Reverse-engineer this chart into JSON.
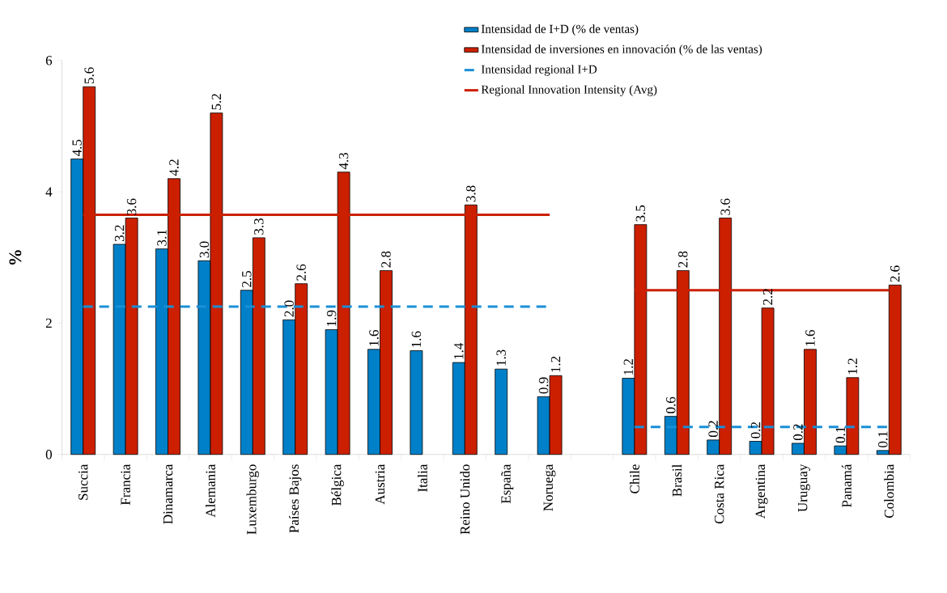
{
  "chart_data": {
    "type": "bar",
    "ylabel": "%",
    "categories": [
      "Succia",
      "Francia",
      "Dinamarca",
      "Alemania",
      "Luxemburgo",
      "Países Bajos",
      "Bélgica",
      "Austria",
      "Italia",
      "Reino Unido",
      "España",
      "Noruega",
      null,
      "Chile",
      "Brasil",
      "Costa Rica",
      "Argentina",
      "Uruguay",
      "Panamá",
      "Colombia"
    ],
    "series": [
      {
        "name": "Intensidad de I+D (% de ventas)",
        "color": "#0080c8",
        "values": [
          4.5,
          3.2,
          3.13,
          2.95,
          2.5,
          2.05,
          1.9,
          1.6,
          1.58,
          1.4,
          1.3,
          0.88,
          null,
          1.16,
          0.58,
          0.22,
          0.2,
          0.17,
          0.13,
          0.06
        ],
        "value_labels": [
          "4.5",
          "3.2",
          "3.1",
          "3.0",
          "2.5",
          "2.0",
          "1.9",
          "1.6",
          "1.6",
          "1.4",
          "1.3",
          "0.9",
          null,
          "1.2",
          "0.6",
          "0.2",
          "0.2",
          "0.2",
          "0.1",
          "0.1"
        ]
      },
      {
        "name": "Intensidad de inversiones en innovación (% de las ventas)",
        "color": "#cc1f00",
        "values": [
          5.6,
          3.6,
          4.2,
          5.2,
          3.3,
          2.6,
          4.3,
          2.8,
          null,
          3.8,
          null,
          1.2,
          null,
          3.5,
          2.8,
          3.6,
          2.23,
          1.6,
          1.17,
          2.58
        ],
        "value_labels": [
          "5.6",
          "3.6",
          "4.2",
          "5.2",
          "3.3",
          "2.6",
          "4.3",
          "2.8",
          null,
          "3.8",
          null,
          "1.2",
          null,
          "3.5",
          "2.8",
          "3.6",
          "2.2",
          "1.6",
          "1.2",
          "2.6"
        ]
      },
      {
        "name": "Intensidad regional I+D",
        "type": "line",
        "line_style": "dashed",
        "color": "#1a8fd6",
        "values": [
          2.25,
          2.25,
          2.25,
          2.25,
          2.25,
          2.25,
          2.25,
          2.25,
          2.25,
          2.25,
          2.25,
          2.25,
          null,
          0.42,
          0.42,
          0.42,
          0.42,
          0.42,
          0.42,
          0.42
        ]
      },
      {
        "name": "Regional Innovation Intensity (Avg)",
        "type": "line",
        "line_style": "solid",
        "color": "#cc1f00",
        "values": [
          3.65,
          3.65,
          3.65,
          3.65,
          3.65,
          3.65,
          3.65,
          3.65,
          3.65,
          3.65,
          3.65,
          3.65,
          null,
          2.5,
          2.5,
          2.5,
          2.5,
          2.5,
          2.5,
          2.5
        ]
      }
    ],
    "ylim": [
      0,
      6
    ],
    "yticks": [
      0,
      2,
      4,
      6
    ],
    "legend": "top right",
    "grid": false,
    "marker": "none"
  }
}
